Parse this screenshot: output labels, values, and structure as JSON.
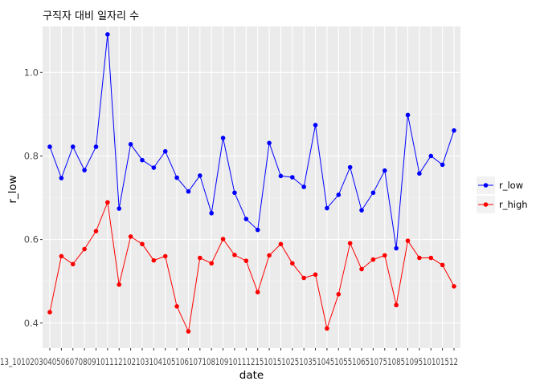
{
  "chart_data": {
    "type": "line",
    "title": "구직자 대비 일자리 수",
    "xlabel": "date",
    "ylabel": "r_low",
    "x_tick_labels": [
      "13",
      "10",
      "11",
      "02",
      "12",
      "03",
      "04",
      "03",
      "04",
      "05",
      "05",
      "06",
      "07",
      "08",
      "09",
      "09",
      "10",
      "11",
      "12",
      "12",
      "10",
      "11",
      "02",
      "12",
      "03",
      "04",
      "05",
      "06",
      "07",
      "08",
      "08",
      "09",
      "10",
      "11",
      "12",
      "01",
      "02",
      "03",
      "04",
      "05",
      "06",
      "07",
      "08",
      "08",
      "09",
      "10",
      "11",
      "12"
    ],
    "x_axis_label_text": "13_10102030405060708091011121021031041051061071081091011121510151025103510451055106510751085109510101512",
    "ylim": [
      0.34,
      1.11
    ],
    "y_ticks": [
      0.4,
      0.6,
      0.8,
      1.0
    ],
    "y_tick_labels": [
      "0.4",
      "0.6",
      "0.8",
      "1.0"
    ],
    "grid": true,
    "legend_position": "right",
    "series": [
      {
        "name": "r_low",
        "color": "#0000ff",
        "values": [
          0.822,
          0.747,
          0.822,
          0.766,
          0.822,
          1.091,
          0.674,
          0.828,
          0.79,
          0.772,
          0.811,
          0.748,
          0.715,
          0.753,
          0.663,
          0.843,
          0.712,
          0.649,
          0.623,
          0.831,
          0.752,
          0.749,
          0.726,
          0.874,
          0.675,
          0.707,
          0.773,
          0.67,
          0.712,
          0.765,
          0.579,
          0.898,
          0.758,
          0.8,
          0.779,
          0.861
        ]
      },
      {
        "name": "r_high",
        "color": "#ff0000",
        "values": [
          0.426,
          0.56,
          0.541,
          0.577,
          0.62,
          0.689,
          0.492,
          0.607,
          0.589,
          0.55,
          0.56,
          0.44,
          0.38,
          0.556,
          0.543,
          0.601,
          0.563,
          0.549,
          0.474,
          0.562,
          0.589,
          0.543,
          0.508,
          0.516,
          0.387,
          0.469,
          0.591,
          0.529,
          0.552,
          0.562,
          0.443,
          0.597,
          0.556,
          0.556,
          0.539,
          0.488
        ]
      }
    ]
  }
}
